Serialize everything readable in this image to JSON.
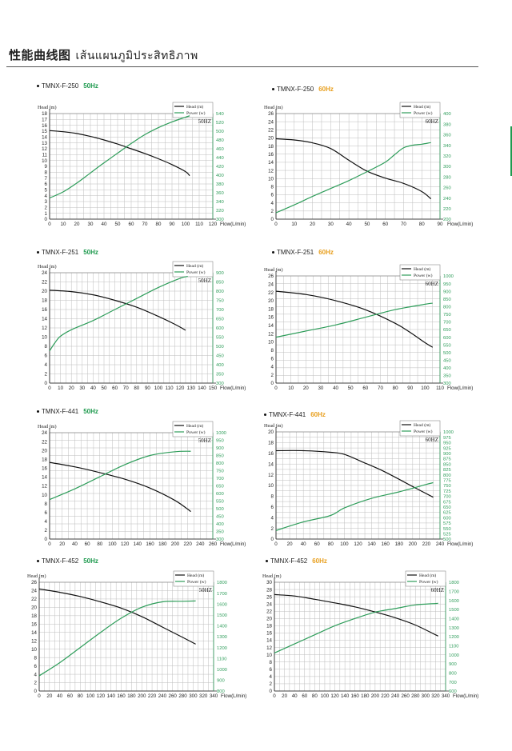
{
  "page": {
    "title": "性能曲线图",
    "title_th": "เส้นแผนภูมิประสิทธิภาพ"
  },
  "colors": {
    "head": "#111111",
    "power": "#2e9d5a",
    "grid": "#bdbdbd",
    "hz50": "#1f9a4f",
    "hz60": "#e8a020"
  },
  "chart_data": [
    {
      "type": "line",
      "model": "TMNX-F-250",
      "freq": "50Hz",
      "freq_label": "50HZ",
      "ylabel": "Head (m)",
      "y2label": "",
      "xlabel": "Flow(L/min)",
      "legend": [
        "Head (m)",
        "Power (w)"
      ],
      "xlim": [
        0,
        120
      ],
      "xstep": 10,
      "ylim": [
        0,
        18
      ],
      "ystep": 1,
      "y2lim": [
        300,
        540
      ],
      "y2step": 20,
      "series": [
        {
          "name": "Head (m)",
          "axis": "left",
          "points": [
            [
              0,
              15.1
            ],
            [
              10,
              14.9
            ],
            [
              20,
              14.6
            ],
            [
              30,
              14.1
            ],
            [
              40,
              13.5
            ],
            [
              50,
              12.8
            ],
            [
              60,
              12.0
            ],
            [
              70,
              11.2
            ],
            [
              80,
              10.3
            ],
            [
              90,
              9.3
            ],
            [
              100,
              8.1
            ],
            [
              103,
              7.4
            ]
          ]
        },
        {
          "name": "Power (w)",
          "axis": "right",
          "points": [
            [
              0,
              348
            ],
            [
              10,
              362
            ],
            [
              20,
              382
            ],
            [
              30,
              405
            ],
            [
              40,
              428
            ],
            [
              50,
              450
            ],
            [
              60,
              472
            ],
            [
              70,
              492
            ],
            [
              80,
              508
            ],
            [
              90,
              521
            ],
            [
              100,
              532
            ],
            [
              103,
              535
            ]
          ]
        }
      ]
    },
    {
      "type": "line",
      "model": "TMNX-F-250",
      "freq": "60Hz",
      "freq_label": "60HZ",
      "ylabel": "Head (m)",
      "y2label": "",
      "xlabel": "Flow(L/min)",
      "legend": [
        "Head (m)",
        "Power (w)"
      ],
      "xlim": [
        0,
        90
      ],
      "xstep": 10,
      "ylim": [
        0,
        26
      ],
      "ystep": 2,
      "y2lim": [
        200,
        400
      ],
      "y2step": 20,
      "series": [
        {
          "name": "Head (m)",
          "axis": "left",
          "points": [
            [
              0,
              19.8
            ],
            [
              10,
              19.5
            ],
            [
              20,
              18.8
            ],
            [
              30,
              17.4
            ],
            [
              40,
              14.5
            ],
            [
              50,
              11.8
            ],
            [
              60,
              10.1
            ],
            [
              70,
              8.8
            ],
            [
              80,
              6.8
            ],
            [
              85,
              5.0
            ]
          ]
        },
        {
          "name": "Power (w)",
          "axis": "right",
          "points": [
            [
              0,
              212
            ],
            [
              10,
              227
            ],
            [
              20,
              243
            ],
            [
              30,
              258
            ],
            [
              40,
              273
            ],
            [
              50,
              290
            ],
            [
              60,
              308
            ],
            [
              65,
              322
            ],
            [
              70,
              335
            ],
            [
              75,
              340
            ],
            [
              80,
              342
            ],
            [
              85,
              345
            ]
          ]
        }
      ]
    },
    {
      "type": "line",
      "model": "TMNX-F-251",
      "freq": "50Hz",
      "freq_label": "50HZ",
      "ylabel": "Head (m)",
      "y2label": "",
      "xlabel": "Flow(L/min)",
      "legend": [
        "Head (m)",
        "Power (w)"
      ],
      "xlim": [
        0,
        150
      ],
      "xstep": 10,
      "ylim": [
        0,
        24
      ],
      "ystep": 2,
      "y2lim": [
        300,
        900
      ],
      "y2step": 50,
      "series": [
        {
          "name": "Head (m)",
          "axis": "left",
          "points": [
            [
              0,
              20.2
            ],
            [
              20,
              19.9
            ],
            [
              40,
              19.2
            ],
            [
              60,
              18.0
            ],
            [
              80,
              16.5
            ],
            [
              100,
              14.5
            ],
            [
              115,
              12.8
            ],
            [
              125,
              11.5
            ]
          ]
        },
        {
          "name": "Power (w)",
          "axis": "right",
          "points": [
            [
              0,
              475
            ],
            [
              5,
              520
            ],
            [
              10,
              555
            ],
            [
              20,
              590
            ],
            [
              40,
              640
            ],
            [
              60,
              700
            ],
            [
              80,
              760
            ],
            [
              100,
              820
            ],
            [
              120,
              870
            ],
            [
              127,
              880
            ]
          ]
        }
      ]
    },
    {
      "type": "line",
      "model": "TMNX-F-251",
      "freq": "60Hz",
      "freq_label": "60HZ",
      "ylabel": "Head (m)",
      "y2label": "",
      "xlabel": "Flow(L/min)",
      "legend": [
        "Head (m)",
        "Power (w)"
      ],
      "xlim": [
        0,
        110
      ],
      "xstep": 10,
      "ylim": [
        0,
        26
      ],
      "ystep": 2,
      "y2lim": [
        300,
        1000
      ],
      "y2step": 50,
      "series": [
        {
          "name": "Head (m)",
          "axis": "left",
          "points": [
            [
              0,
              22.3
            ],
            [
              20,
              21.5
            ],
            [
              40,
              20.0
            ],
            [
              60,
              17.8
            ],
            [
              80,
              14.5
            ],
            [
              90,
              12.3
            ],
            [
              100,
              9.8
            ],
            [
              105,
              8.7
            ]
          ]
        },
        {
          "name": "Power (w)",
          "axis": "right",
          "points": [
            [
              0,
              600
            ],
            [
              20,
              640
            ],
            [
              40,
              680
            ],
            [
              60,
              730
            ],
            [
              80,
              780
            ],
            [
              100,
              815
            ],
            [
              105,
              822
            ]
          ]
        }
      ]
    },
    {
      "type": "line",
      "model": "TMNX-F-441",
      "freq": "50Hz",
      "freq_label": "50HZ",
      "ylabel": "Head (m)",
      "y2label": "",
      "xlabel": "Flow(L/min)",
      "legend": [
        "Head (m)",
        "Power (w)"
      ],
      "xlim": [
        0,
        260
      ],
      "xstep": 20,
      "ylim": [
        0,
        24
      ],
      "ystep": 2,
      "y2lim": [
        300,
        1000
      ],
      "y2step": 50,
      "series": [
        {
          "name": "Head (m)",
          "axis": "left",
          "points": [
            [
              0,
              17.3
            ],
            [
              40,
              16.3
            ],
            [
              80,
              15.0
            ],
            [
              120,
              13.5
            ],
            [
              160,
              11.5
            ],
            [
              200,
              8.7
            ],
            [
              225,
              6.2
            ]
          ]
        },
        {
          "name": "Power (w)",
          "axis": "right",
          "points": [
            [
              0,
              560
            ],
            [
              40,
              630
            ],
            [
              80,
              710
            ],
            [
              120,
              790
            ],
            [
              160,
              850
            ],
            [
              200,
              875
            ],
            [
              225,
              878
            ]
          ]
        }
      ]
    },
    {
      "type": "line",
      "model": "TMNX-F-441",
      "freq": "60Hz",
      "freq_label": "60HZ",
      "ylabel": "Head (m)",
      "y2label": "",
      "xlabel": "Flow(L/min)",
      "legend": [
        "Head (m)",
        "Power (w)"
      ],
      "xlim": [
        0,
        240
      ],
      "xstep": 20,
      "ylim": [
        0,
        20
      ],
      "ystep": 2,
      "y2lim": [
        500,
        1000
      ],
      "y2step": 25,
      "series": [
        {
          "name": "Head (m)",
          "axis": "left",
          "points": [
            [
              0,
              16.5
            ],
            [
              40,
              16.5
            ],
            [
              80,
              16.2
            ],
            [
              100,
              15.8
            ],
            [
              130,
              14.2
            ],
            [
              160,
              12.5
            ],
            [
              200,
              9.8
            ],
            [
              230,
              7.8
            ]
          ]
        },
        {
          "name": "Power (w)",
          "axis": "right",
          "points": [
            [
              0,
              540
            ],
            [
              40,
              580
            ],
            [
              80,
              610
            ],
            [
              100,
              645
            ],
            [
              140,
              690
            ],
            [
              180,
              720
            ],
            [
              220,
              755
            ],
            [
              230,
              763
            ]
          ]
        }
      ]
    },
    {
      "type": "line",
      "model": "TMNX-F-452",
      "freq": "50Hz",
      "freq_label": "50HZ",
      "ylabel": "Head (m)",
      "y2label": "",
      "xlabel": "Flow(L/min)",
      "legend": [
        "Head (m)",
        "Power (w)"
      ],
      "xlim": [
        0,
        340
      ],
      "xstep": 20,
      "ylim": [
        0,
        26
      ],
      "ystep": 2,
      "y2lim": [
        800,
        1800
      ],
      "y2step": 100,
      "series": [
        {
          "name": "Head (m)",
          "axis": "left",
          "points": [
            [
              0,
              24.4
            ],
            [
              40,
              23.6
            ],
            [
              80,
              22.6
            ],
            [
              120,
              21.3
            ],
            [
              160,
              19.8
            ],
            [
              200,
              17.8
            ],
            [
              240,
              15.3
            ],
            [
              280,
              12.8
            ],
            [
              305,
              11.2
            ]
          ]
        },
        {
          "name": "Power (w)",
          "axis": "right",
          "points": [
            [
              0,
              940
            ],
            [
              40,
              1060
            ],
            [
              80,
              1200
            ],
            [
              120,
              1340
            ],
            [
              160,
              1470
            ],
            [
              200,
              1570
            ],
            [
              240,
              1620
            ],
            [
              280,
              1625
            ],
            [
              305,
              1628
            ]
          ]
        }
      ]
    },
    {
      "type": "line",
      "model": "TMNX-F-452",
      "freq": "60Hz",
      "freq_label": "60HZ",
      "ylabel": "Head (m)",
      "y2label": "",
      "xlabel": "Flow(L/min)",
      "legend": [
        "Head (m)",
        "Power (w)"
      ],
      "xlim": [
        0,
        340
      ],
      "xstep": 20,
      "ylim": [
        0,
        30
      ],
      "ystep": 2,
      "y2lim": [
        600,
        1800
      ],
      "y2step": 100,
      "series": [
        {
          "name": "Head (m)",
          "axis": "left",
          "points": [
            [
              0,
              26.6
            ],
            [
              40,
              26.2
            ],
            [
              80,
              25.3
            ],
            [
              120,
              24.3
            ],
            [
              160,
              23.2
            ],
            [
              200,
              21.8
            ],
            [
              240,
              20.2
            ],
            [
              280,
              18.2
            ],
            [
              320,
              15.5
            ],
            [
              325,
              15.2
            ]
          ]
        },
        {
          "name": "Power (w)",
          "axis": "right",
          "points": [
            [
              0,
              1020
            ],
            [
              40,
              1120
            ],
            [
              80,
              1220
            ],
            [
              120,
              1320
            ],
            [
              160,
              1400
            ],
            [
              200,
              1470
            ],
            [
              240,
              1510
            ],
            [
              280,
              1550
            ],
            [
              320,
              1565
            ],
            [
              325,
              1568
            ]
          ]
        }
      ]
    }
  ]
}
